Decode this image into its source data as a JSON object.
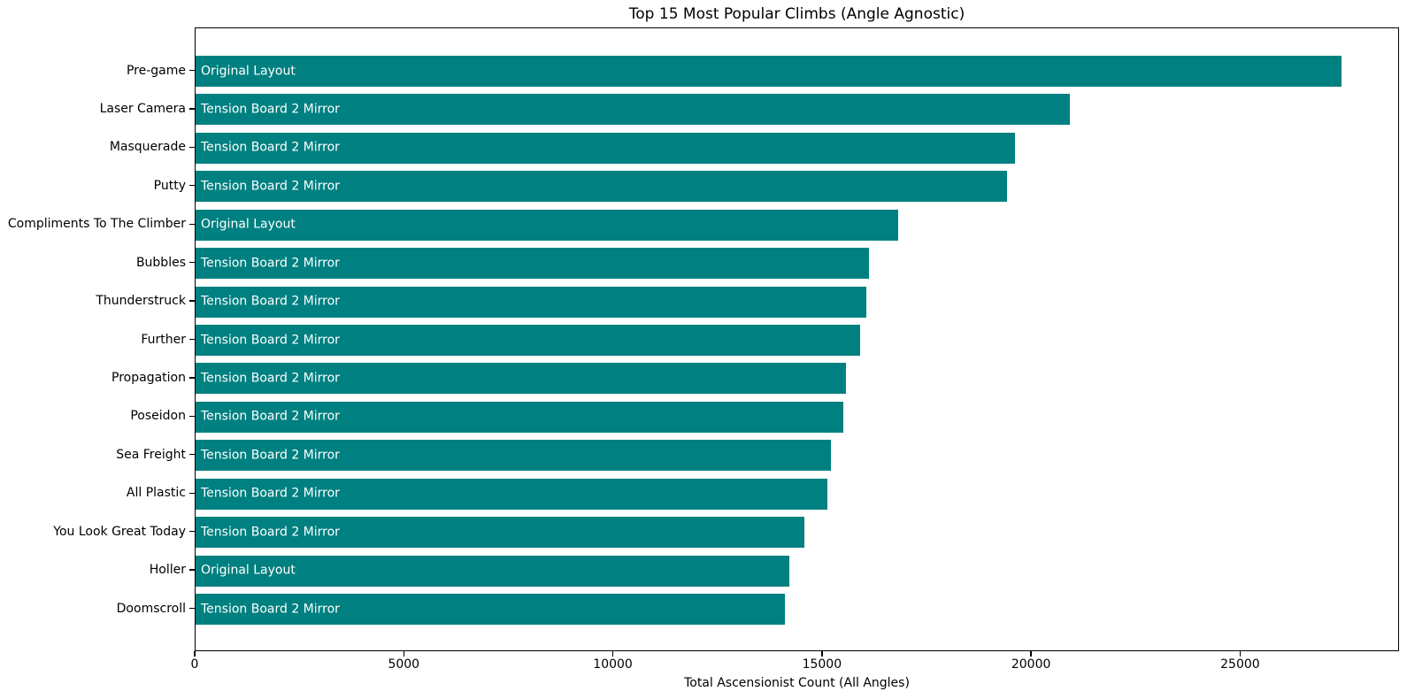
{
  "chart_data": {
    "type": "bar",
    "orientation": "horizontal",
    "title": "Top 15 Most Popular Climbs (Angle Agnostic)",
    "xlabel": "Total Ascensionist Count (All Angles)",
    "ylabel": "",
    "categories": [
      "Pre-game",
      "Laser Camera",
      "Masquerade",
      "Putty",
      "Compliments To The Climber",
      "Bubbles",
      "Thunderstruck",
      "Further",
      "Propagation",
      "Poseidon",
      "Sea Freight",
      "All Plastic",
      "You Look Great Today",
      "Holler",
      "Doomscroll"
    ],
    "values": [
      27400,
      20900,
      19600,
      19400,
      16800,
      16100,
      16050,
      15900,
      15550,
      15500,
      15200,
      15100,
      14550,
      14200,
      14100
    ],
    "bar_annotations": [
      "Original Layout",
      "Tension Board 2 Mirror",
      "Tension Board 2 Mirror",
      "Tension Board 2 Mirror",
      "Original Layout",
      "Tension Board 2 Mirror",
      "Tension Board 2 Mirror",
      "Tension Board 2 Mirror",
      "Tension Board 2 Mirror",
      "Tension Board 2 Mirror",
      "Tension Board 2 Mirror",
      "Tension Board 2 Mirror",
      "Tension Board 2 Mirror",
      "Original Layout",
      "Tension Board 2 Mirror"
    ],
    "xticks": [
      0,
      5000,
      10000,
      15000,
      20000,
      25000
    ],
    "xtick_labels": [
      "0",
      "5000",
      "10000",
      "15000",
      "20000",
      "25000"
    ],
    "xlim": [
      0,
      28800
    ],
    "grid": false,
    "legend_position": "none",
    "bar_color": "#008080",
    "bar_annotation_color": "#ffffff",
    "text_color": "#000000"
  }
}
